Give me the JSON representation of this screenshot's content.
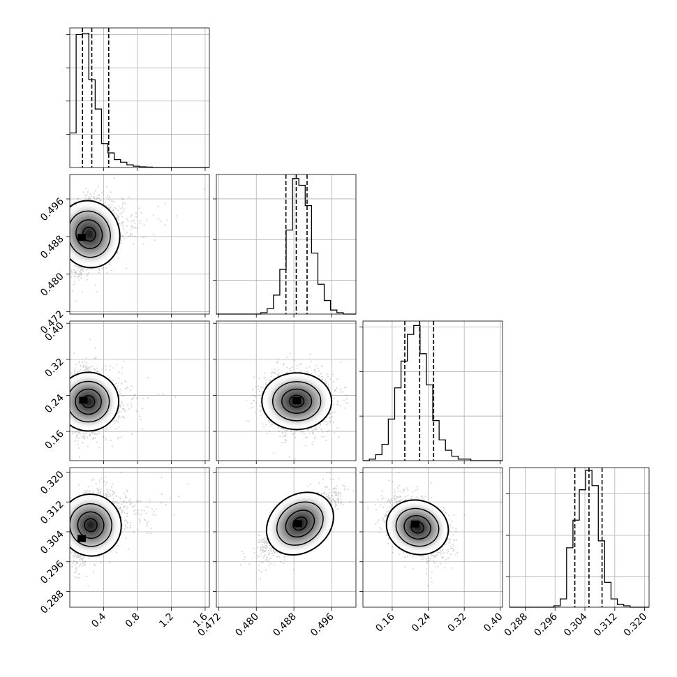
{
  "chart_data": {
    "type": "corner",
    "grid": true,
    "axes": {
      "p0": {
        "range": [
          0.0,
          1.65
        ],
        "ticks": [
          0.4,
          0.8,
          1.2,
          1.6
        ],
        "tick_labels": [
          "0.4",
          "0.8",
          "1.2",
          "1.6"
        ]
      },
      "p1": {
        "range": [
          0.4715,
          0.5012
        ],
        "ticks": [
          0.472,
          0.48,
          0.488,
          0.496
        ],
        "tick_labels": [
          "0.472",
          "0.480",
          "0.488",
          "0.496"
        ]
      },
      "p2": {
        "range": [
          0.095,
          0.405
        ],
        "ticks": [
          0.16,
          0.24,
          0.32,
          0.4
        ],
        "tick_labels": [
          "0.16",
          "0.24",
          "0.32",
          "0.40"
        ]
      },
      "p3": {
        "range": [
          0.2838,
          0.3212
        ],
        "ticks": [
          0.288,
          0.296,
          0.304,
          0.312,
          0.32
        ],
        "tick_labels": [
          "0.288",
          "0.296",
          "0.304",
          "0.312",
          "0.320"
        ]
      }
    },
    "histograms": [
      {
        "param": "p0",
        "edges_start": 0.0,
        "bin_width": 0.075,
        "counts": [
          26,
          100,
          101,
          66,
          44,
          18,
          11,
          6,
          4,
          2,
          1,
          0.5,
          0.3,
          0,
          0,
          0,
          0,
          0,
          0,
          0,
          0,
          0
        ],
        "ymax": 105,
        "ticks": [
          25,
          50,
          75,
          100
        ],
        "quantiles": [
          0.15,
          0.26,
          0.46
        ]
      },
      {
        "param": "p1",
        "edges_start": 0.4715,
        "bin_width": 0.00135,
        "counts": [
          0,
          0,
          0,
          0,
          0,
          0,
          0,
          1,
          4,
          14,
          33,
          62,
          100,
          95,
          80,
          45,
          22,
          10,
          3,
          1,
          0,
          0
        ],
        "ymax": 103,
        "ticks": [
          25,
          55,
          85
        ],
        "quantiles": [
          0.4863,
          0.4885,
          0.4908
        ]
      },
      {
        "param": "p2",
        "edges_start": 0.095,
        "bin_width": 0.0141,
        "counts": [
          0,
          1,
          4,
          11,
          28,
          49,
          67,
          85,
          91,
          72,
          51,
          27,
          14,
          7,
          3,
          1,
          1,
          0,
          0,
          0,
          0,
          0
        ],
        "ymax": 94,
        "ticks": [
          30,
          60,
          90
        ],
        "quantiles": [
          0.188,
          0.221,
          0.252
        ]
      },
      {
        "param": "p3",
        "edges_start": 0.2838,
        "bin_width": 0.0017,
        "counts": [
          0,
          0,
          0,
          0,
          0,
          0,
          0,
          1,
          6,
          43,
          63,
          85,
          99,
          88,
          48,
          18,
          6,
          2,
          1,
          0,
          0,
          0
        ],
        "ymax": 101,
        "ticks": [
          22,
          52,
          82
        ],
        "quantiles": [
          0.3013,
          0.3051,
          0.3086
        ]
      }
    ],
    "pairs": [
      {
        "x": "p0",
        "y": "p1",
        "center": [
          0.22,
          0.4885
        ],
        "spread": [
          0.13,
          0.0032
        ],
        "tail": "x",
        "rho": 0.25,
        "peak": [
          0.14,
          0.4878
        ]
      },
      {
        "x": "p0",
        "y": "p2",
        "center": [
          0.21,
          0.226
        ],
        "spread": [
          0.12,
          0.029
        ],
        "tail": "x",
        "rho": 0.0,
        "peak": [
          0.16,
          0.229
        ]
      },
      {
        "x": "p1",
        "y": "p2",
        "center": [
          0.4886,
          0.227
        ],
        "spread": [
          0.0033,
          0.028
        ],
        "tail": "none",
        "rho": 0.0,
        "peak": [
          0.4886,
          0.228
        ]
      },
      {
        "x": "p0",
        "y": "p3",
        "center": [
          0.24,
          0.3058
        ],
        "spread": [
          0.13,
          0.0037
        ],
        "tail": "x",
        "rho": 0.45,
        "peak": [
          0.14,
          0.3022
        ]
      },
      {
        "x": "p1",
        "y": "p3",
        "center": [
          0.4893,
          0.3062
        ],
        "spread": [
          0.0034,
          0.0034
        ],
        "tail": "none",
        "rho": 0.82,
        "peak": [
          0.4888,
          0.3062
        ]
      },
      {
        "x": "p2",
        "y": "p3",
        "center": [
          0.216,
          0.3052
        ],
        "spread": [
          0.031,
          0.0032
        ],
        "tail": "none",
        "rho": -0.35,
        "peak": [
          0.211,
          0.3061
        ]
      }
    ]
  }
}
